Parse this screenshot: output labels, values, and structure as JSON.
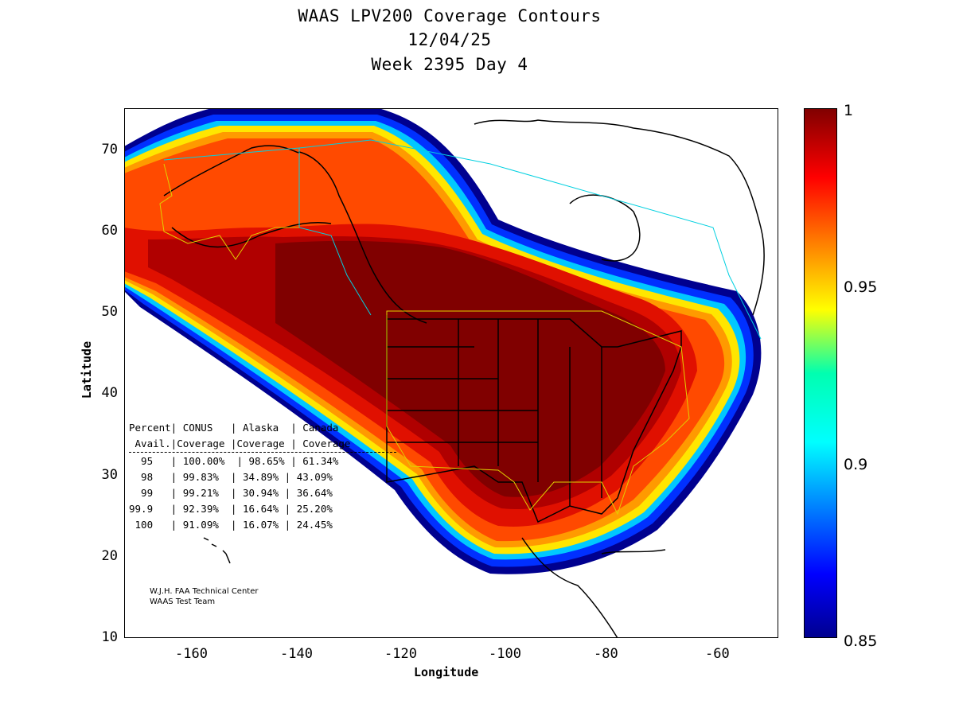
{
  "title": {
    "line1": "WAAS LPV200 Coverage Contours",
    "line2": "12/04/25",
    "line3": "Week 2395 Day 4"
  },
  "axes": {
    "xlabel": "Longitude",
    "ylabel": "Latitude",
    "xticks": [
      "-160",
      "-140",
      "-120",
      "-100",
      "-80",
      "-60"
    ],
    "yticks": [
      "70",
      "60",
      "50",
      "40",
      "30",
      "20",
      "10"
    ],
    "xlim": [
      -175,
      -50
    ],
    "ylim": [
      10,
      75
    ]
  },
  "colorbar": {
    "ticks": [
      "1",
      "0.95",
      "0.9",
      "0.85"
    ],
    "range": [
      0.85,
      1
    ],
    "colormap": "jet"
  },
  "stats_table": {
    "header1": "Percent| CONUS   | Alaska  | Canada",
    "header2": " Avail.|Coverage |Coverage | Coverage",
    "rows": [
      "  95   | 100.00%  | 98.65% | 61.34%",
      "  98   | 99.83%  | 34.89% | 43.09%",
      "  99   | 99.21%  | 30.94% | 36.64%",
      "99.9   | 92.39%  | 16.64% | 25.20%",
      " 100   | 91.09%  | 16.07% | 24.45%"
    ]
  },
  "credits": {
    "line1": "W.J.H. FAA Technical Center",
    "line2": "WAAS Test Team"
  },
  "chart_data": {
    "type": "heatmap",
    "title": "WAAS LPV200 Coverage Contours",
    "subtitle": [
      "12/04/25",
      "Week 2395 Day 4"
    ],
    "xlabel": "Longitude",
    "ylabel": "Latitude",
    "xlim": [
      -175,
      -50
    ],
    "ylim": [
      10,
      75
    ],
    "color_range": [
      0.85,
      1
    ],
    "coverage_table": {
      "columns": [
        "Percent Avail.",
        "CONUS Coverage",
        "Alaska Coverage",
        "Canada Coverage"
      ],
      "rows": [
        [
          "95",
          "100.00%",
          "98.65%",
          "61.34%"
        ],
        [
          "98",
          "99.83%",
          "34.89%",
          "43.09%"
        ],
        [
          "99",
          "99.21%",
          "30.94%",
          "36.64%"
        ],
        [
          "99.9",
          "92.39%",
          "16.64%",
          "25.20%"
        ],
        [
          "100",
          "91.09%",
          "16.07%",
          "24.45%"
        ]
      ]
    }
  }
}
